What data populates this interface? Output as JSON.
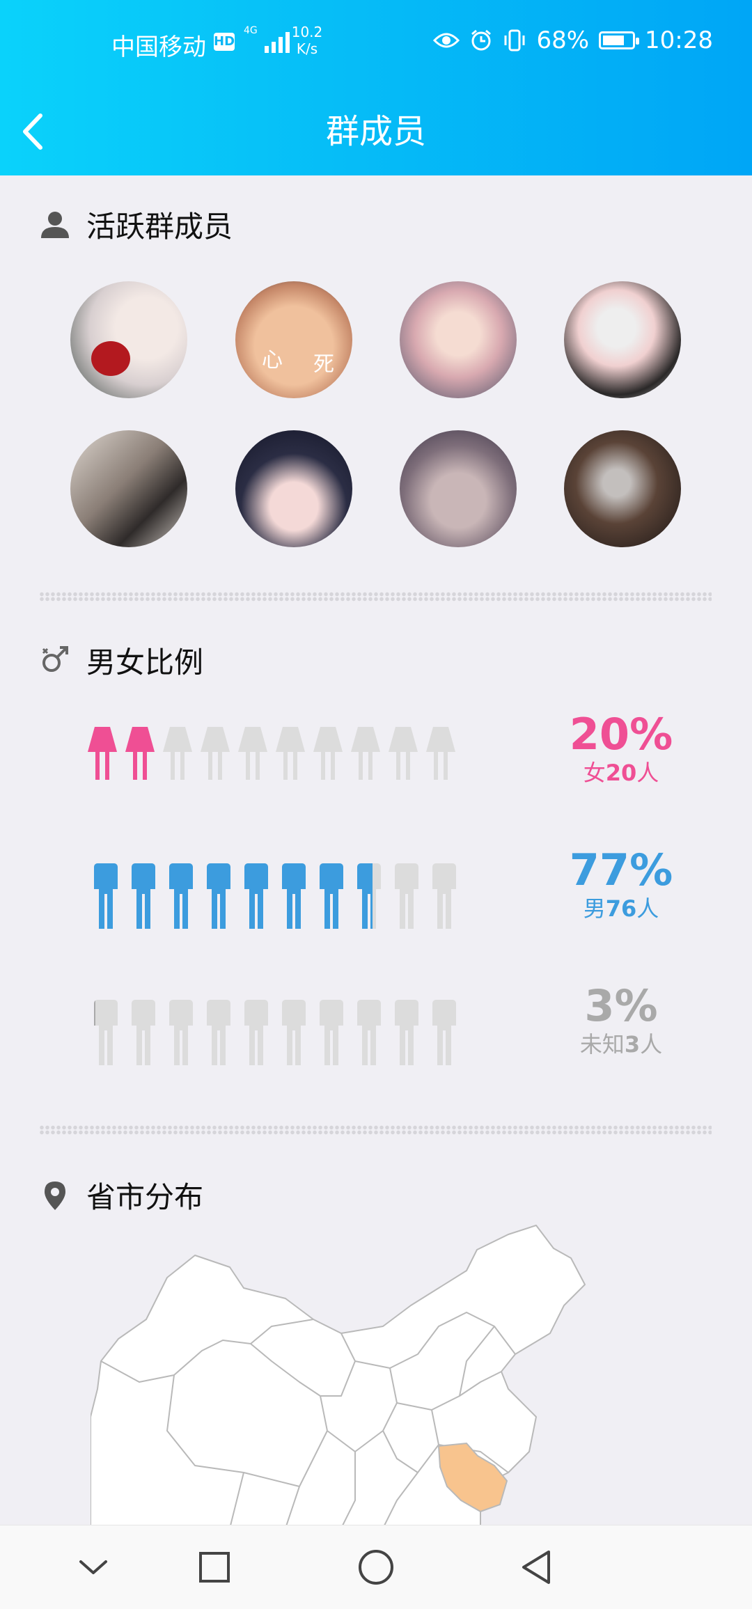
{
  "status_bar": {
    "carrier": "中国移动",
    "hd_badge": "HD",
    "network": "4G",
    "speed_value": "10.2",
    "speed_unit": "K/s",
    "battery": "68%",
    "time": "10:28"
  },
  "header": {
    "title": "群成员"
  },
  "active_members": {
    "heading": "活跃群成员",
    "avatar1_text": [
      "心",
      "死"
    ]
  },
  "gender_ratio": {
    "heading": "男女比例",
    "female": {
      "percent": "20%",
      "label": "女20人",
      "prefix": "女",
      "count": "20",
      "unit": "人",
      "filled": 2,
      "total": 10,
      "color": "#ef4f94"
    },
    "male": {
      "percent": "77%",
      "label": "男76人",
      "prefix": "男",
      "count": "76",
      "unit": "人",
      "filled": 7.7,
      "total": 10,
      "color": "#3c9cde"
    },
    "unknown": {
      "percent": "3%",
      "label": "未知3人",
      "prefix": "未知",
      "count": "3",
      "unit": "人",
      "filled": 0.3,
      "total": 10,
      "color": "#a9a9a9"
    }
  },
  "province_distribution": {
    "heading": "省市分布",
    "highlight_color": "#f8c48e"
  },
  "colors": {
    "header_start": "#0ad2fb",
    "header_end": "#00a6f6",
    "background": "#f0eff4",
    "inactive_figure": "#dcdcdc"
  },
  "icons": {
    "back": "chevron-left-icon",
    "member": "person-icon",
    "gender": "gender-icon",
    "location": "map-pin-icon",
    "nav": [
      "chevron-down-icon",
      "square-icon",
      "circle-icon",
      "triangle-back-icon"
    ]
  }
}
